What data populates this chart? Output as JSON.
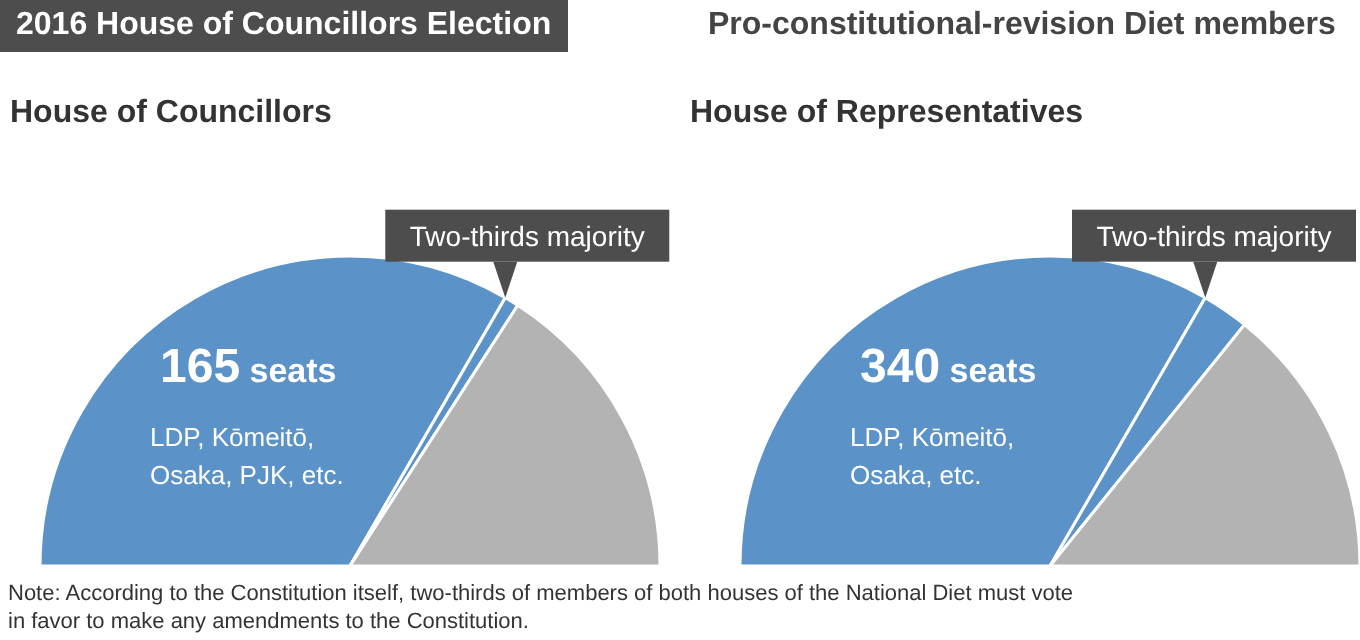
{
  "chart_data": [
    {
      "type": "other",
      "title": "2016 House of Councillors Election",
      "subtitle": "Pro-constitutional-revision Diet members",
      "annotations": [
        "Note: According to the Constitution itself, two-thirds of members of both houses of the National Diet must vote in favor to make any amendments to the Constitution."
      ]
    },
    {
      "type": "pie",
      "title": "House of Councillors",
      "categories": [
        "LDP, Kōmeitō, Osaka, PJK, etc.",
        null,
        null
      ],
      "values": [
        66.7,
        1.5,
        31.8
      ],
      "colors": [
        "#5b93c9",
        "#5b93c9",
        "#b3b3b3"
      ],
      "annotations": [
        "165 seats",
        "Two-thirds majority"
      ]
    },
    {
      "type": "pie",
      "title": "House of Representatives",
      "categories": [
        "LDP, Kōmeitō, Osaka, etc.",
        null,
        null
      ],
      "values": [
        66.7,
        4.9,
        28.4
      ],
      "colors": [
        "#5b93c9",
        "#5b93c9",
        "#b3b3b3"
      ],
      "annotations": [
        "340 seats",
        "Two-thirds majority"
      ]
    }
  ]
}
